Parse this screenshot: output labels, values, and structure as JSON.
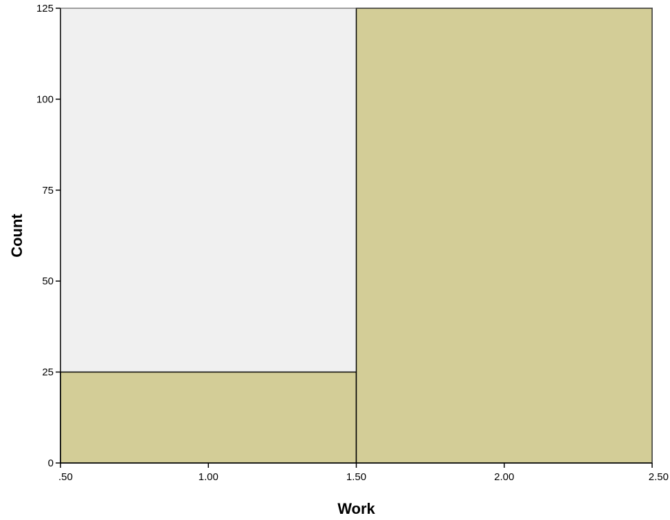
{
  "chart_data": {
    "type": "bar",
    "subtype": "histogram",
    "title": "",
    "xlabel": "Work",
    "ylabel": "Count",
    "xlim": [
      0.5,
      2.5
    ],
    "ylim": [
      0,
      125
    ],
    "bins": [
      {
        "x0": 0.5,
        "x1": 1.5,
        "value": 25
      },
      {
        "x0": 1.5,
        "x1": 2.5,
        "value": 125
      }
    ],
    "x_ticks": [
      0.5,
      1.0,
      1.5,
      2.0,
      2.5
    ],
    "x_tick_labels": [
      ".50",
      "1.00",
      "1.50",
      "2.00",
      "2.50"
    ],
    "y_ticks": [
      0,
      25,
      50,
      75,
      100,
      125
    ],
    "y_tick_labels": [
      "0",
      "25",
      "50",
      "75",
      "100",
      "125"
    ],
    "grid": false,
    "legend": "none"
  },
  "colors": {
    "bar_fill": "#d3cd97",
    "bar_stroke": "#000000",
    "plot_background": "#f0f0f0",
    "axis": "#000000"
  }
}
